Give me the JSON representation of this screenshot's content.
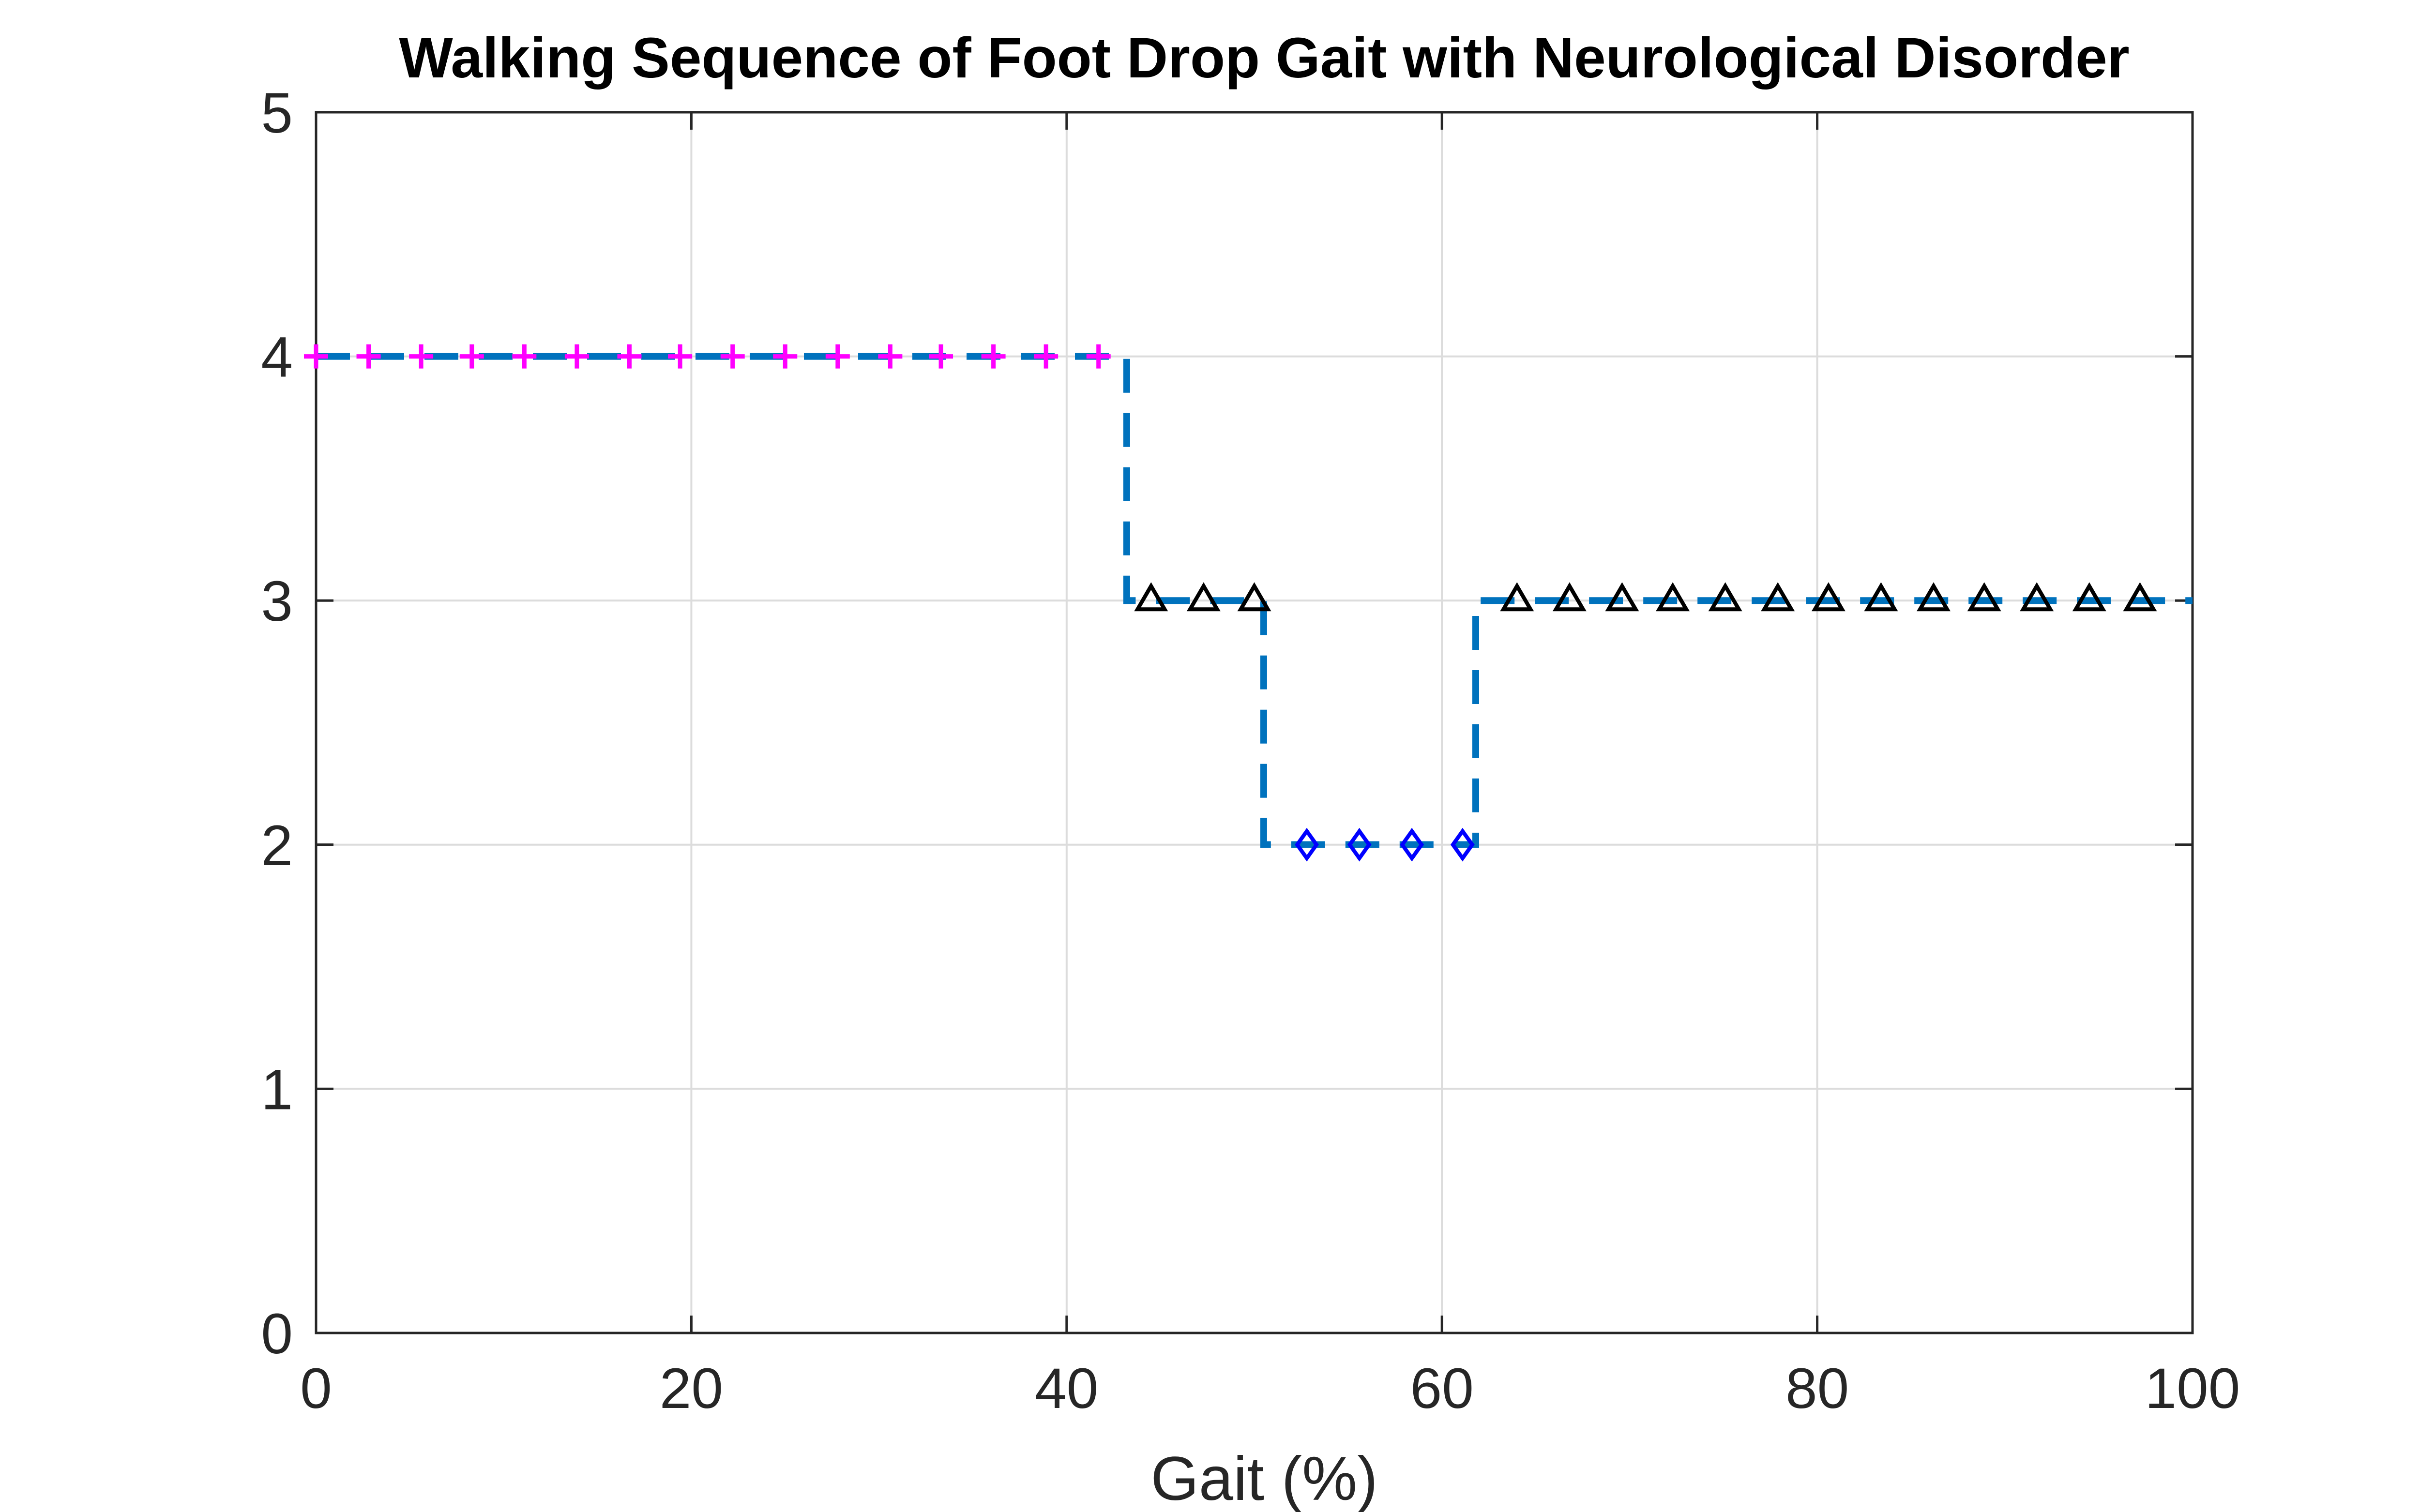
{
  "chart_data": {
    "type": "line",
    "title": "Walking Sequence of Foot Drop Gait with Neurological Disorder",
    "xlabel": "Gait (%)",
    "ylabel": "",
    "xlim": [
      0,
      100
    ],
    "ylim": [
      0,
      5
    ],
    "xticks": [
      "0",
      "20",
      "40",
      "60",
      "80",
      "100"
    ],
    "yticks": [
      "0",
      "1",
      "2",
      "3",
      "4",
      "5"
    ],
    "grid": true,
    "line_style": "dashed step",
    "line_color": "#0072BD",
    "step_line": [
      {
        "x": 0,
        "y": 4
      },
      {
        "x": 43.2,
        "y": 4
      },
      {
        "x": 43.2,
        "y": 3
      },
      {
        "x": 50.5,
        "y": 3
      },
      {
        "x": 50.5,
        "y": 2
      },
      {
        "x": 61.8,
        "y": 2
      },
      {
        "x": 61.8,
        "y": 3
      },
      {
        "x": 100,
        "y": 3
      }
    ],
    "series": [
      {
        "marker": "plus",
        "color": "#FF00FF",
        "y": 4,
        "x": [
          0,
          2.8,
          5.6,
          8.3,
          11.1,
          13.9,
          16.7,
          19.4,
          22.2,
          25.0,
          27.8,
          30.6,
          33.3,
          36.1,
          38.9,
          41.7
        ]
      },
      {
        "marker": "triangle",
        "color": "#000000",
        "y": 3,
        "x": [
          44.5,
          47.3,
          50.0,
          64.0,
          66.8,
          69.6,
          72.3,
          75.1,
          77.9,
          80.6,
          83.4,
          86.2,
          88.9,
          91.7,
          94.5,
          97.2
        ]
      },
      {
        "marker": "diamond",
        "color": "#0000FF",
        "y": 2,
        "x": [
          52.8,
          55.6,
          58.4,
          61.1
        ]
      }
    ]
  }
}
